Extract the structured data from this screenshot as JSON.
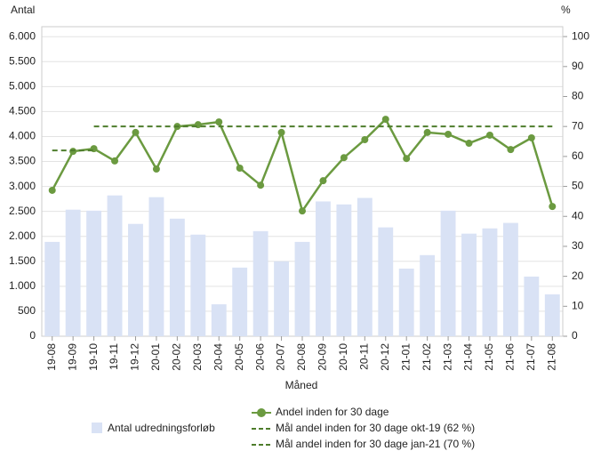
{
  "chart_data": {
    "type": "bar-line",
    "y_axis_label": "Antal",
    "y2_axis_label": "%",
    "x_axis_label": "Måned",
    "categories": [
      "19-08",
      "19-09",
      "19-10",
      "19-11",
      "19-12",
      "20-01",
      "20-02",
      "20-03",
      "20-04",
      "20-05",
      "20-06",
      "20-07",
      "20-08",
      "20-09",
      "20-10",
      "20-11",
      "20-12",
      "21-01",
      "21-02",
      "21-03",
      "21-04",
      "21-05",
      "21-06",
      "21-07",
      "21-08"
    ],
    "ylim": [
      0,
      6200
    ],
    "yticks": [
      0,
      {
        "value": 500,
        "label": "500"
      },
      {
        "value": 1000,
        "label": "1.000"
      },
      {
        "value": 1500,
        "label": "1.500"
      },
      {
        "value": 2000,
        "label": "2.000"
      },
      {
        "value": 2500,
        "label": "2.500"
      },
      {
        "value": 3000,
        "label": "3.000"
      },
      {
        "value": 3500,
        "label": "3.500"
      },
      {
        "value": 4000,
        "label": "4.000"
      },
      {
        "value": 4500,
        "label": "4.500"
      },
      {
        "value": 5000,
        "label": "5.000"
      },
      {
        "value": 5500,
        "label": "5.500"
      },
      {
        "value": 6000,
        "label": "6.000"
      }
    ],
    "y2lim": [
      0,
      103.3
    ],
    "y2ticks": [
      0,
      10,
      20,
      30,
      40,
      50,
      60,
      70,
      80,
      90,
      100
    ],
    "grid": true,
    "series": [
      {
        "name": "Antal udredningsforløb",
        "kind": "bar",
        "color": "#d9e2f5",
        "values": [
          1890,
          2535,
          2515,
          2820,
          2250,
          2785,
          2355,
          2035,
          640,
          1375,
          2105,
          1500,
          1890,
          2700,
          2640,
          2770,
          2180,
          1355,
          1625,
          2515,
          2055,
          2160,
          2270,
          1195,
          840
        ]
      },
      {
        "name": "Andel inden for 30 dage",
        "kind": "line",
        "axis": "y2",
        "color": "#6b9a40",
        "values": [
          48.7,
          61.7,
          62.6,
          58.5,
          68.0,
          55.8,
          70.0,
          70.6,
          71.5,
          56.1,
          50.4,
          68.0,
          41.8,
          51.9,
          59.6,
          65.6,
          72.4,
          59.3,
          68.0,
          67.4,
          64.4,
          67.1,
          62.3,
          66.2,
          43.3
        ]
      },
      {
        "name": "Mål andel inden for 30 dage okt-19 (62 %)",
        "kind": "dashed",
        "axis": "y2",
        "color": "#4e7d2c",
        "values": [
          62,
          62,
          62,
          null,
          null,
          null,
          null,
          null,
          null,
          null,
          null,
          null,
          null,
          null,
          null,
          null,
          null,
          null,
          null,
          null,
          null,
          null,
          null,
          null,
          null
        ]
      },
      {
        "name": "Mål andel inden for 30 dage jan-21 (70 %)",
        "kind": "dashed",
        "axis": "y2",
        "color": "#4e7d2c",
        "values": [
          null,
          null,
          70,
          70,
          70,
          70,
          70,
          70,
          70,
          70,
          70,
          70,
          70,
          70,
          70,
          70,
          70,
          70,
          70,
          70,
          70,
          70,
          70,
          70,
          70
        ]
      }
    ]
  }
}
